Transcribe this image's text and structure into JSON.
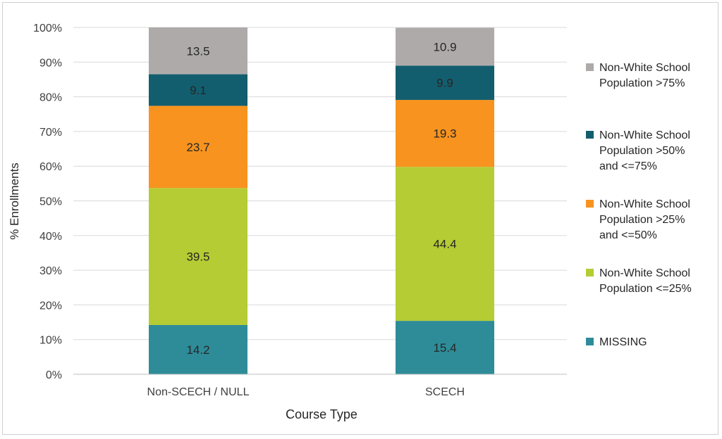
{
  "chart_data": {
    "type": "bar",
    "stacked": true,
    "xlabel": "Course Type",
    "ylabel": "% Enrollments",
    "ylim": [
      0,
      100
    ],
    "yticks": [
      "0%",
      "10%",
      "20%",
      "30%",
      "40%",
      "50%",
      "60%",
      "70%",
      "80%",
      "90%",
      "100%"
    ],
    "categories": [
      "Non-SCECH / NULL",
      "SCECH"
    ],
    "series": [
      {
        "name": "MISSING",
        "color": "#2e8c99",
        "values": [
          14.2,
          15.4
        ]
      },
      {
        "name": "Non-White School Population <=25%",
        "legend_lines": [
          "Non-White School",
          "Population <=25%"
        ],
        "color": "#b5cc34",
        "values": [
          39.5,
          44.4
        ]
      },
      {
        "name": "Non-White School Population >25% and <=50%",
        "legend_lines": [
          "Non-White School",
          "Population >25%",
          "and <=50%"
        ],
        "color": "#f7931e",
        "values": [
          23.7,
          19.3
        ]
      },
      {
        "name": "Non-White School Population >50% and <=75%",
        "legend_lines": [
          "Non-White School",
          "Population >50%",
          "and <=75%"
        ],
        "color": "#135e6e",
        "values": [
          9.1,
          9.9
        ]
      },
      {
        "name": "Non-White School Population >75%",
        "legend_lines": [
          "Non-White School",
          "Population >75%"
        ],
        "color": "#aeaaaa",
        "values": [
          13.5,
          10.9
        ]
      }
    ],
    "legend_position": "right",
    "gridlines": true
  }
}
